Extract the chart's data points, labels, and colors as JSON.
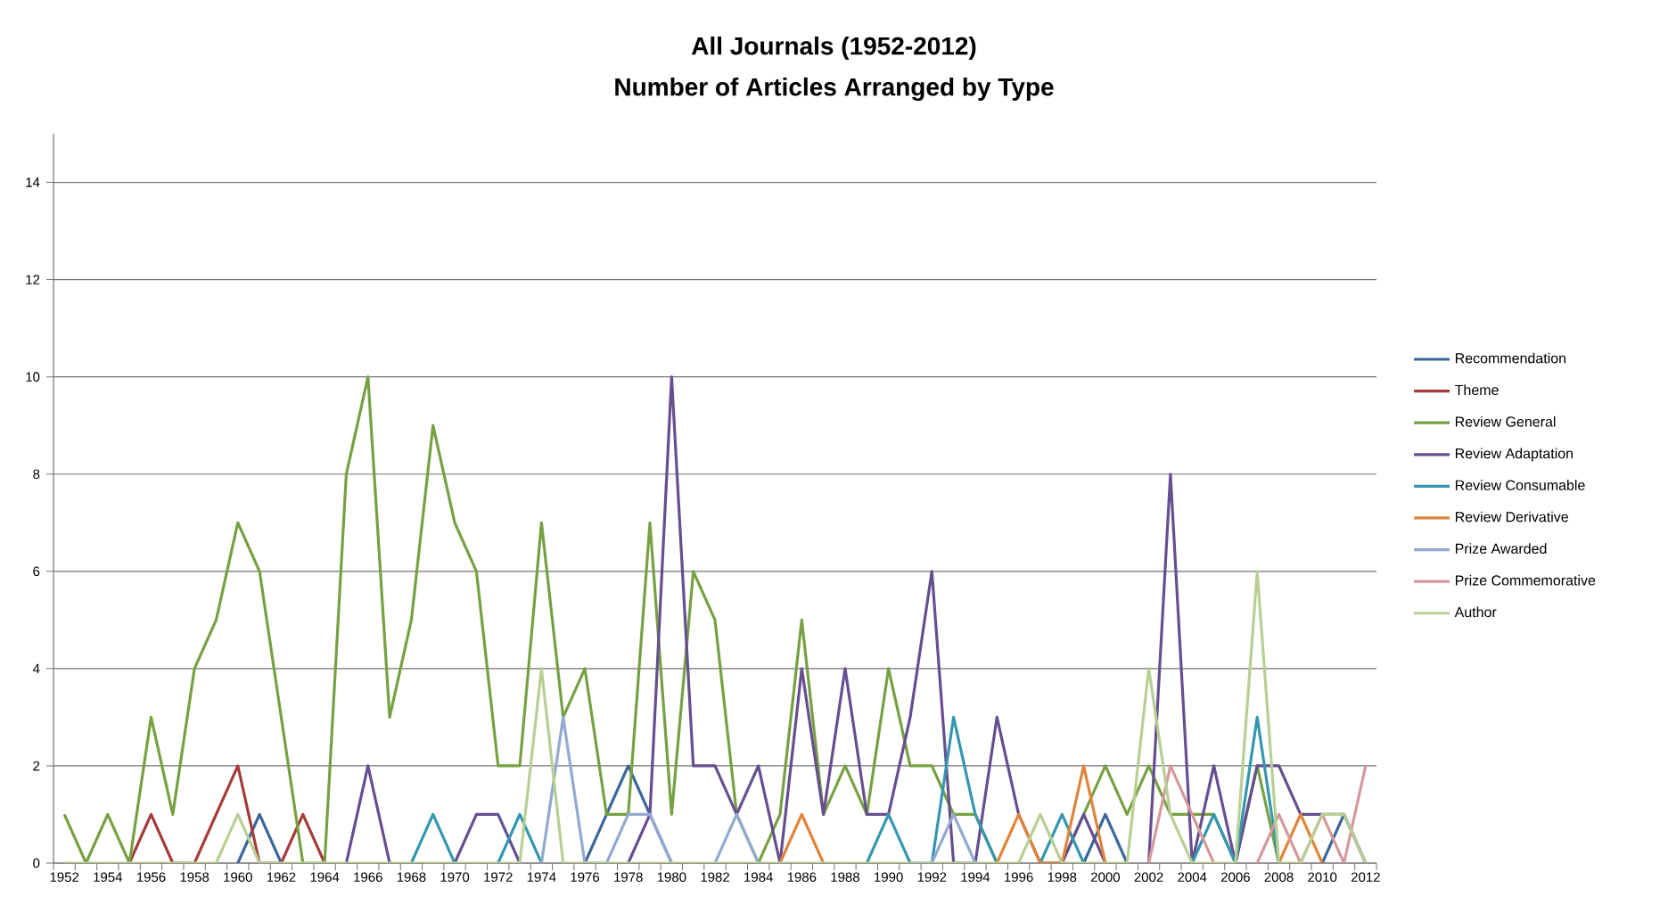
{
  "chart_data": {
    "type": "line",
    "title": "All Journals (1952-2012)",
    "subtitle": "Number of Articles Arranged by Type",
    "categories": [
      "1952",
      null,
      "1954",
      null,
      "1956",
      null,
      "1958",
      null,
      "1960",
      null,
      "1962",
      null,
      "1964",
      null,
      "1966",
      null,
      "1968",
      null,
      "1970",
      null,
      "1972",
      null,
      "1974",
      null,
      "1976",
      null,
      "1978",
      null,
      "1980",
      null,
      "1982",
      null,
      "1984",
      null,
      "1986",
      null,
      "1988",
      null,
      "1990",
      null,
      "1992",
      null,
      "1994",
      null,
      "1996",
      null,
      "1998",
      null,
      "2000",
      null,
      "2002",
      null,
      "2004",
      null,
      "2006",
      null,
      "2008",
      null,
      "2010",
      null,
      "2012"
    ],
    "ylim": [
      0,
      15
    ],
    "yticks": [
      0,
      2,
      4,
      6,
      8,
      10,
      12,
      14
    ],
    "grid": "y",
    "legend": "right",
    "line_style": "solid",
    "series": [
      {
        "name": "Recommendation",
        "color": "#3a6699",
        "values": [
          null,
          null,
          null,
          null,
          null,
          null,
          null,
          null,
          0,
          1,
          0,
          null,
          null,
          null,
          null,
          null,
          null,
          null,
          null,
          null,
          null,
          null,
          null,
          null,
          0,
          1,
          2,
          1,
          0,
          null,
          null,
          null,
          null,
          null,
          null,
          null,
          null,
          null,
          null,
          null,
          null,
          null,
          null,
          null,
          null,
          null,
          null,
          0,
          1,
          0,
          null,
          null,
          null,
          null,
          null,
          null,
          null,
          null,
          0,
          1,
          0
        ]
      },
      {
        "name": "Theme",
        "color": "#a33b39",
        "values": [
          null,
          null,
          null,
          0,
          1,
          0,
          0,
          1,
          2,
          0,
          0,
          1,
          0,
          null,
          null,
          null,
          null,
          null,
          null,
          null,
          null,
          null,
          null,
          null,
          null,
          null,
          null,
          null,
          null,
          null,
          null,
          null,
          null,
          null,
          null,
          null,
          null,
          null,
          null,
          null,
          null,
          null,
          null,
          null,
          null,
          null,
          null,
          null,
          null,
          null,
          null,
          null,
          null,
          null,
          null,
          null,
          null,
          null,
          null,
          null,
          null
        ]
      },
      {
        "name": "Review General",
        "color": "#77a043",
        "values": [
          1,
          0,
          1,
          0,
          3,
          1,
          4,
          5,
          7,
          6,
          3,
          0,
          0,
          8,
          10,
          3,
          5,
          9,
          7,
          6,
          2,
          2,
          7,
          3,
          4,
          1,
          1,
          7,
          1,
          6,
          5,
          1,
          0,
          1,
          5,
          1,
          2,
          1,
          4,
          2,
          2,
          1,
          1,
          0,
          null,
          null,
          0,
          1,
          2,
          1,
          2,
          1,
          1,
          1,
          0,
          2,
          0,
          null,
          null,
          null,
          null
        ]
      },
      {
        "name": "Review Adaptation",
        "color": "#654f8f",
        "values": [
          null,
          null,
          null,
          null,
          null,
          null,
          null,
          null,
          null,
          null,
          null,
          null,
          null,
          0,
          2,
          0,
          null,
          null,
          0,
          1,
          1,
          0,
          null,
          null,
          null,
          null,
          0,
          1,
          10,
          2,
          2,
          1,
          2,
          0,
          4,
          1,
          4,
          1,
          1,
          3,
          6,
          0,
          0,
          3,
          1,
          0,
          0,
          1,
          0,
          null,
          0,
          8,
          0,
          2,
          0,
          2,
          2,
          1,
          1,
          1,
          0
        ]
      },
      {
        "name": "Review Consumable",
        "color": "#3596b0",
        "values": [
          null,
          null,
          null,
          null,
          null,
          null,
          null,
          null,
          null,
          null,
          null,
          null,
          null,
          null,
          null,
          null,
          0,
          1,
          0,
          null,
          0,
          1,
          0,
          null,
          null,
          null,
          null,
          null,
          null,
          null,
          null,
          null,
          null,
          null,
          null,
          null,
          null,
          0,
          1,
          0,
          0,
          3,
          1,
          0,
          null,
          0,
          1,
          0,
          null,
          null,
          null,
          null,
          0,
          1,
          0,
          3,
          0,
          null,
          null,
          null,
          null
        ]
      },
      {
        "name": "Review Derivative",
        "color": "#e0843a",
        "values": [
          null,
          null,
          null,
          null,
          null,
          null,
          null,
          null,
          null,
          null,
          null,
          null,
          null,
          null,
          null,
          null,
          null,
          null,
          null,
          null,
          null,
          null,
          null,
          null,
          null,
          null,
          null,
          null,
          null,
          null,
          null,
          null,
          null,
          0,
          1,
          0,
          null,
          null,
          null,
          null,
          null,
          null,
          null,
          0,
          1,
          0,
          0,
          2,
          0,
          null,
          null,
          null,
          null,
          null,
          null,
          null,
          0,
          1,
          0,
          null,
          null
        ]
      },
      {
        "name": "Prize Awarded",
        "color": "#93a9cf",
        "values": [
          null,
          null,
          null,
          null,
          null,
          null,
          null,
          null,
          null,
          null,
          null,
          null,
          null,
          null,
          null,
          null,
          null,
          null,
          null,
          null,
          null,
          null,
          0,
          3,
          0,
          0,
          1,
          1,
          0,
          null,
          0,
          1,
          0,
          null,
          null,
          null,
          null,
          null,
          null,
          null,
          0,
          1,
          0,
          null,
          null,
          null,
          null,
          null,
          null,
          null,
          null,
          null,
          null,
          null,
          null,
          null,
          null,
          null,
          null,
          null,
          null
        ]
      },
      {
        "name": "Prize Commemorative",
        "color": "#d4999a",
        "values": [
          null,
          null,
          null,
          null,
          null,
          null,
          null,
          null,
          null,
          null,
          null,
          null,
          null,
          null,
          null,
          null,
          null,
          null,
          null,
          null,
          null,
          null,
          null,
          null,
          null,
          null,
          null,
          null,
          null,
          null,
          null,
          null,
          null,
          null,
          null,
          null,
          null,
          null,
          null,
          null,
          null,
          null,
          null,
          null,
          null,
          null,
          null,
          null,
          null,
          null,
          0,
          2,
          1,
          0,
          null,
          0,
          1,
          0,
          1,
          0,
          2
        ]
      },
      {
        "name": "Author",
        "color": "#b8cf94",
        "values": [
          0,
          0,
          0,
          0,
          0,
          0,
          0,
          0,
          1,
          0,
          0,
          0,
          0,
          0,
          0,
          0,
          0,
          0,
          0,
          0,
          0,
          0,
          4,
          0,
          0,
          0,
          0,
          0,
          0,
          0,
          0,
          0,
          0,
          0,
          0,
          0,
          0,
          0,
          0,
          0,
          0,
          0,
          0,
          0,
          0,
          1,
          0,
          0,
          0,
          0,
          4,
          1,
          0,
          0,
          0,
          6,
          0,
          0,
          1,
          1,
          0
        ]
      }
    ]
  }
}
